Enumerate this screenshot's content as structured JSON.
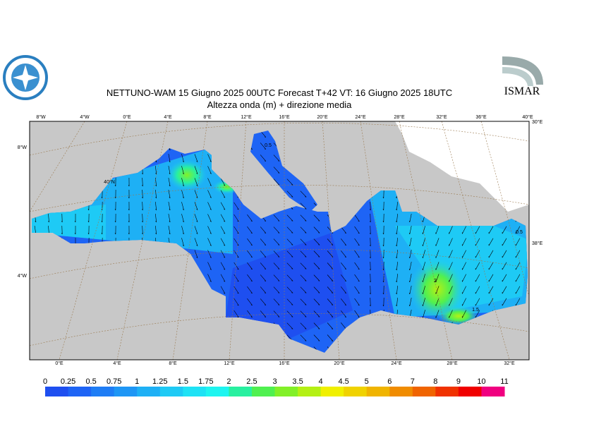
{
  "header": {
    "title": "NETTUNO-WAM  15   Giugno  2025 00UTC Forecast T+42 VT: 16   Giugno  2025 18UTC",
    "subtitle": "Altezza onda (m) + direzione media"
  },
  "logo_text": "ISMAR",
  "map": {
    "top_labels": [
      "8°W",
      "4°W",
      "0°E",
      "4°E",
      "8°E",
      "12°E",
      "16°E",
      "20°E",
      "24°E",
      "28°E",
      "32°E",
      "36°E",
      "40°E"
    ],
    "bottom_labels": [
      "0°E",
      "4°E",
      "8°E",
      "12°E",
      "16°E",
      "20°E",
      "24°E",
      "28°E",
      "32°E"
    ],
    "left_labels": [
      "8°W",
      "4°W"
    ],
    "right_labels": [
      "30°E",
      "38°E"
    ],
    "annotations": [
      "40°N",
      "0.5",
      "0.5",
      "2",
      "1.5"
    ]
  },
  "colorbar": {
    "ticks": [
      0,
      0.25,
      0.5,
      0.75,
      1,
      1.25,
      1.5,
      1.75,
      2,
      2.5,
      3,
      3.5,
      4,
      4.5,
      5,
      6,
      7,
      8,
      9,
      10,
      11
    ],
    "colors": [
      "#1e4ff0",
      "#1e64f5",
      "#1e7df5",
      "#1e96f5",
      "#1eb0f5",
      "#1ecaf5",
      "#1ee2f5",
      "#1ef5f0",
      "#28f0a0",
      "#50f050",
      "#82f028",
      "#b4f014",
      "#f0f000",
      "#f0d200",
      "#f0b400",
      "#f08c00",
      "#f06400",
      "#f03200",
      "#f00000",
      "#f00080"
    ]
  }
}
